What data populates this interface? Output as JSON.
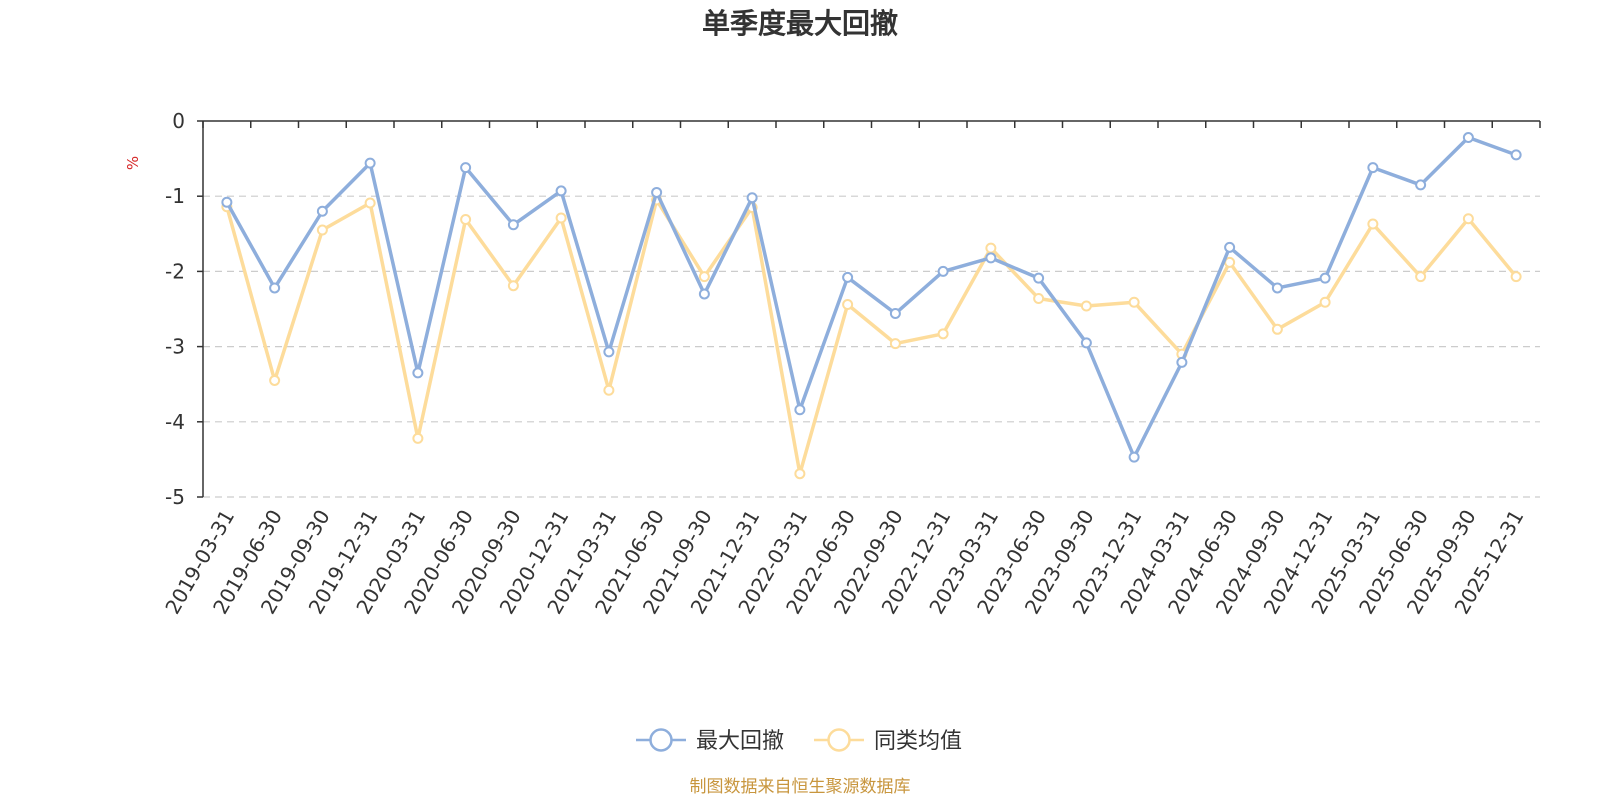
{
  "chart_data": {
    "type": "line",
    "title": "单季度最大回撤",
    "ylabel": "%",
    "ylim": [
      -5,
      0
    ],
    "yticks": [
      0,
      -1,
      -2,
      -3,
      -4,
      -5
    ],
    "categories": [
      "2019-03-31",
      "2019-06-30",
      "2019-09-30",
      "2019-12-31",
      "2020-03-31",
      "2020-06-30",
      "2020-09-30",
      "2020-12-31",
      "2021-03-31",
      "2021-06-30",
      "2021-09-30",
      "2021-12-31",
      "2022-03-31",
      "2022-06-30",
      "2022-09-30",
      "2022-12-31",
      "2023-03-31",
      "2023-06-30",
      "2023-09-30",
      "2023-12-31",
      "2024-03-31",
      "2024-06-30",
      "2024-09-30",
      "2024-12-31",
      "2025-03-31",
      "2025-06-30",
      "2025-09-30",
      "2025-12-31"
    ],
    "series": [
      {
        "name": "最大回撤",
        "color": "#8eaedc",
        "values": [
          -1.08,
          -2.22,
          -1.2,
          -0.56,
          -3.35,
          -0.62,
          -1.38,
          -0.93,
          -3.07,
          -0.95,
          -2.3,
          -1.02,
          -3.84,
          -2.08,
          -2.56,
          -2.0,
          -1.82,
          -2.09,
          -2.95,
          -4.47,
          -3.21,
          -1.68,
          -2.22,
          -2.09,
          -0.62,
          -0.85,
          -0.22,
          -0.45
        ]
      },
      {
        "name": "同类均值",
        "color": "#fddc9b",
        "values": [
          -1.14,
          -3.45,
          -1.45,
          -1.09,
          -4.22,
          -1.31,
          -2.19,
          -1.29,
          -3.58,
          -1.05,
          -2.07,
          -1.15,
          -4.69,
          -2.44,
          -2.96,
          -2.83,
          -1.69,
          -2.36,
          -2.46,
          -2.41,
          -3.1,
          -1.88,
          -2.77,
          -2.41,
          -1.37,
          -2.07,
          -1.3,
          -2.07
        ]
      }
    ],
    "grid": true,
    "legend_position": "bottom-center",
    "source_note": "制图数据来自恒生聚源数据库",
    "source_color": "#c8963e",
    "unit_color": "#d62728",
    "axis_color": "#333333",
    "grid_color": "#cccccc"
  }
}
